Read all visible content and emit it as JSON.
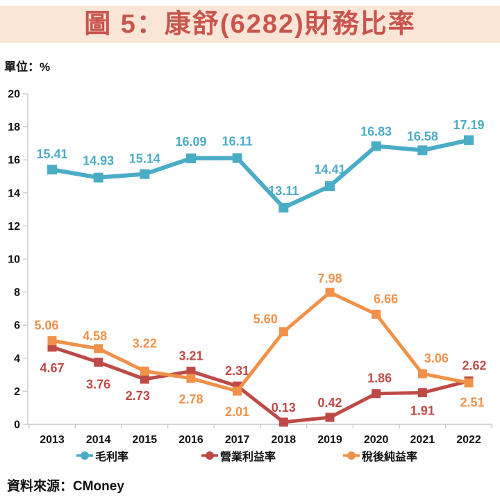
{
  "header": {
    "title": "圖 5：康舒(6282)財務比率"
  },
  "axis_unit_label": "單位：%",
  "source_note": "資料來源：CMoney",
  "theme": {
    "band_bg": "#FBE5D6",
    "title_color": "#C8554D",
    "axis_color": "#C9C9C9",
    "tick_text_color": "#111111"
  },
  "chart_data": {
    "type": "line",
    "title": "圖 5：康舒(6282)財務比率",
    "unit": "%",
    "x_categories": [
      "2013",
      "2014",
      "2015",
      "2016",
      "2017",
      "2018",
      "2019",
      "2020",
      "2021",
      "2022"
    ],
    "ylim": [
      0,
      20
    ],
    "ytick_step": 2,
    "grid": false,
    "legend_position": "bottom",
    "marker_shape": "square",
    "value_label_decimals": 2,
    "series": [
      {
        "key": "gross-margin",
        "name": "毛利率",
        "color": "#4BACC6",
        "values": [
          15.41,
          14.93,
          15.14,
          16.09,
          16.11,
          13.11,
          14.41,
          16.83,
          16.58,
          17.19
        ],
        "line_width": 6,
        "marker_size": 14,
        "label_dx": [
          0,
          0,
          0,
          0,
          0,
          0,
          0,
          0,
          0,
          0
        ],
        "label_dy": [
          -16,
          -18,
          -16,
          -18,
          -18,
          -18,
          -18,
          -15,
          -14,
          -16
        ]
      },
      {
        "key": "operating-margin",
        "name": "營業利益率",
        "color": "#BE4A47",
        "values": [
          4.67,
          3.76,
          2.73,
          3.21,
          2.31,
          0.13,
          0.42,
          1.86,
          1.91,
          2.62
        ],
        "line_width": 5,
        "marker_size": 13,
        "label_dx": [
          0,
          0,
          -10,
          0,
          0,
          0,
          0,
          5,
          0,
          8
        ],
        "label_dy": [
          36,
          38,
          30,
          -16,
          -16,
          -15,
          -15,
          -16,
          32,
          -16
        ]
      },
      {
        "key": "net-margin",
        "name": "稅後純益率",
        "color": "#F0914A",
        "values": [
          5.06,
          4.58,
          3.22,
          2.78,
          2.01,
          5.6,
          7.98,
          6.66,
          3.06,
          2.51
        ],
        "line_width": 5,
        "marker_size": 13,
        "label_dx": [
          -8,
          -5,
          0,
          0,
          0,
          -26,
          0,
          14,
          20,
          5
        ],
        "label_dy": [
          -16,
          -12,
          -34,
          36,
          36,
          -12,
          -14,
          -16,
          -16,
          34
        ]
      }
    ]
  }
}
